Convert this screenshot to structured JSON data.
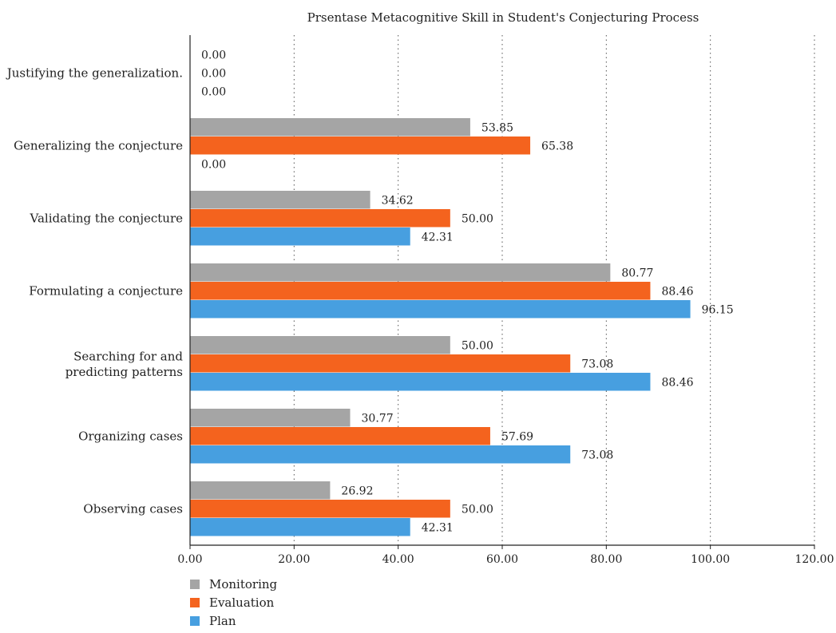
{
  "chart_data": {
    "type": "bar",
    "orientation": "horizontal",
    "title": "Prsentase Metacognitive Skill in Student's Conjecturing Process",
    "xlabel": "",
    "ylabel": "",
    "xlim": [
      0,
      120
    ],
    "x_ticks": [
      "0.00",
      "20.00",
      "40.00",
      "60.00",
      "80.00",
      "100.00",
      "120.00"
    ],
    "grid": "vertical dotted",
    "legend_position": "bottom-left",
    "categories": [
      "Justifying the generalization.",
      "Generalizing the conjecture",
      "Validating the conjecture",
      "Formulating a conjecture",
      "Searching for and predicting patterns",
      "Organizing cases",
      "Observing cases"
    ],
    "series": [
      {
        "name": "Monitoring",
        "color": "#a5a5a5",
        "values": [
          0,
          53.85,
          34.62,
          80.77,
          50.0,
          30.77,
          26.92
        ],
        "labels": [
          "0.00",
          "53.85",
          "34.62",
          "80.77",
          "50.00",
          "30.77",
          "26.92"
        ]
      },
      {
        "name": "Evaluation",
        "color": "#f4631e",
        "values": [
          0,
          65.38,
          50.0,
          88.46,
          73.08,
          57.69,
          50.0
        ],
        "labels": [
          "0.00",
          "65.38",
          "50.00",
          "88.46",
          "73.08",
          "57.69",
          "50.00"
        ]
      },
      {
        "name": "Plan",
        "color": "#479fe0",
        "values": [
          0,
          0,
          42.31,
          96.15,
          88.46,
          73.08,
          42.31
        ],
        "labels": [
          "0.00",
          "0.00",
          "42.31",
          "96.15",
          "88.46",
          "73.08",
          "42.31"
        ]
      }
    ]
  }
}
